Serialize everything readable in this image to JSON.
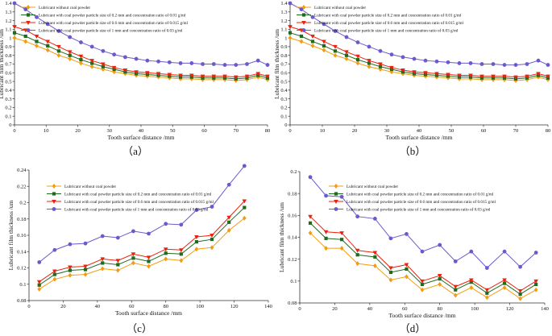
{
  "captions": [
    "（a）",
    "（b）",
    "（c）",
    "（d）"
  ],
  "series_colors": [
    "#f39c12",
    "#1e6b1e",
    "#e8230e",
    "#6a5acd"
  ],
  "series_markers": [
    "diamond",
    "square",
    "triangle-down",
    "circle"
  ],
  "chart_data": [
    {
      "type": "line",
      "xlabel": "Tooth surface distance /mm",
      "ylabel": "Lubricant film thickness /um",
      "xlim": [
        0,
        80
      ],
      "ylim": [
        0,
        1.4
      ],
      "xticks": [
        "0",
        "10",
        "20",
        "30",
        "40",
        "50",
        "60",
        "70",
        "80"
      ],
      "yticks": [
        "0",
        "0.1",
        "0.2",
        "0.3",
        "0.4",
        "0.5",
        "0.6",
        "0.7",
        "0.8",
        "0.9",
        "1",
        "1.1",
        "1.2",
        "1.3",
        "1.4"
      ],
      "legend_position": "top-left",
      "x": [
        0,
        3.5,
        7,
        10.5,
        14,
        17.5,
        21,
        24.5,
        28,
        31.5,
        35,
        38.5,
        42,
        45.5,
        49,
        52.5,
        56,
        59.5,
        63,
        66.5,
        70,
        73.5,
        77,
        80
      ],
      "series": [
        {
          "name": "Lubricant without coal powder",
          "values": [
            1.0,
            0.96,
            0.91,
            0.86,
            0.8,
            0.76,
            0.71,
            0.67,
            0.64,
            0.61,
            0.59,
            0.57,
            0.56,
            0.55,
            0.54,
            0.53,
            0.53,
            0.52,
            0.52,
            0.52,
            0.51,
            0.52,
            0.55,
            0.52
          ]
        },
        {
          "name": "Lubricant with coal powder particle size of 0.2 mm and concentration ratio of 0.01 g/ml",
          "values": [
            1.06,
            1.02,
            0.96,
            0.91,
            0.85,
            0.8,
            0.75,
            0.71,
            0.67,
            0.64,
            0.61,
            0.59,
            0.58,
            0.57,
            0.56,
            0.55,
            0.55,
            0.54,
            0.54,
            0.54,
            0.53,
            0.54,
            0.57,
            0.54
          ]
        },
        {
          "name": "Lubricant with coal powder particle size of 0.6 mm and concentration ratio of 0.015 g/ml",
          "values": [
            1.13,
            1.09,
            1.02,
            0.96,
            0.9,
            0.84,
            0.79,
            0.74,
            0.7,
            0.66,
            0.63,
            0.61,
            0.6,
            0.59,
            0.58,
            0.57,
            0.57,
            0.56,
            0.56,
            0.56,
            0.55,
            0.56,
            0.59,
            0.56
          ]
        },
        {
          "name": "Lubricant with coal powder particle size of 1 mm and concentration ratio of 0.03 g/ml",
          "values": [
            1.4,
            1.33,
            1.24,
            1.16,
            1.08,
            1.01,
            0.95,
            0.9,
            0.85,
            0.81,
            0.78,
            0.76,
            0.74,
            0.73,
            0.72,
            0.71,
            0.71,
            0.7,
            0.7,
            0.69,
            0.69,
            0.7,
            0.74,
            0.69
          ]
        }
      ]
    },
    {
      "type": "line",
      "xlabel": "Tooth surface distance /mm",
      "ylabel": "Lubricant film thickness /um",
      "xlim": [
        0,
        80
      ],
      "ylim": [
        0,
        1.4
      ],
      "xticks": [
        "0",
        "10",
        "20",
        "30",
        "40",
        "50",
        "60",
        "70",
        "80"
      ],
      "yticks": [
        "0",
        "0.1",
        "0.2",
        "0.3",
        "0.4",
        "0.5",
        "0.6",
        "0.7",
        "0.8",
        "0.9",
        "1",
        "1.1",
        "1.2",
        "1.3",
        "1.4"
      ],
      "legend_position": "top-left",
      "x": [
        0,
        3.5,
        7,
        10.5,
        14,
        17.5,
        21,
        24.5,
        28,
        31.5,
        35,
        38.5,
        42,
        45.5,
        49,
        52.5,
        56,
        59.5,
        63,
        66.5,
        70,
        73.5,
        77,
        80
      ],
      "series": [
        {
          "name": "Lubricant without coal powder",
          "values": [
            1.0,
            0.96,
            0.91,
            0.86,
            0.8,
            0.76,
            0.71,
            0.67,
            0.64,
            0.61,
            0.59,
            0.57,
            0.56,
            0.55,
            0.54,
            0.53,
            0.53,
            0.52,
            0.52,
            0.52,
            0.51,
            0.52,
            0.55,
            0.52
          ]
        },
        {
          "name": "Lubricant with coal powder particle size of 0.2 mm and concentration ratio of 0.01 g/ml",
          "values": [
            1.06,
            1.02,
            0.96,
            0.91,
            0.85,
            0.8,
            0.75,
            0.71,
            0.67,
            0.64,
            0.61,
            0.59,
            0.58,
            0.57,
            0.56,
            0.55,
            0.55,
            0.54,
            0.54,
            0.54,
            0.53,
            0.54,
            0.57,
            0.54
          ]
        },
        {
          "name": "Lubricant with coal powder particle size of 0.6 mm and concentration ratio of 0.015 g/ml",
          "values": [
            1.13,
            1.09,
            1.02,
            0.96,
            0.9,
            0.84,
            0.79,
            0.74,
            0.7,
            0.66,
            0.63,
            0.61,
            0.6,
            0.59,
            0.58,
            0.57,
            0.57,
            0.56,
            0.56,
            0.56,
            0.55,
            0.56,
            0.59,
            0.56
          ]
        },
        {
          "name": "Lubricant with coal powder particle size of 1 mm and concentration ratio of 0.03 g/ml",
          "values": [
            1.4,
            1.33,
            1.24,
            1.16,
            1.08,
            1.01,
            0.95,
            0.9,
            0.85,
            0.81,
            0.78,
            0.76,
            0.74,
            0.73,
            0.72,
            0.71,
            0.71,
            0.7,
            0.7,
            0.69,
            0.69,
            0.7,
            0.74,
            0.69
          ]
        }
      ]
    },
    {
      "type": "line",
      "xlabel": "Tooth surface distance /mm",
      "ylabel": "Lubricant film thickness /um",
      "xlim": [
        0,
        140
      ],
      "ylim": [
        0.08,
        0.24
      ],
      "xticks": [
        "0",
        "20",
        "40",
        "60",
        "80",
        "100",
        "120",
        "140"
      ],
      "yticks": [
        "0.08",
        "0.1",
        "0.12",
        "0.14",
        "0.16",
        "0.18",
        "0.2",
        "0.22",
        "0.24"
      ],
      "legend_position": "top-left",
      "x": [
        6,
        15,
        24,
        33,
        43,
        52,
        61,
        70,
        80,
        89,
        98,
        107,
        117,
        126
      ],
      "series": [
        {
          "name": "Lubricant without coal powder",
          "values": [
            0.094,
            0.106,
            0.111,
            0.112,
            0.119,
            0.117,
            0.126,
            0.122,
            0.131,
            0.129,
            0.143,
            0.145,
            0.166,
            0.181
          ]
        },
        {
          "name": "Lubricant with coal powder particle size of 0.2 mm and concentration ratio of 0.01 g/ml",
          "values": [
            0.099,
            0.112,
            0.117,
            0.118,
            0.126,
            0.124,
            0.132,
            0.128,
            0.138,
            0.137,
            0.152,
            0.155,
            0.176,
            0.194
          ]
        },
        {
          "name": "Lubricant with coal powder particle size of 0.6 mm and concentration ratio of 0.015 g/ml",
          "values": [
            0.103,
            0.116,
            0.121,
            0.122,
            0.131,
            0.129,
            0.137,
            0.133,
            0.143,
            0.142,
            0.158,
            0.16,
            0.182,
            0.202
          ]
        },
        {
          "name": "Lubricant with coal powder particle size of 1 mm and concentration ratio of 0.03 g/ml",
          "values": [
            0.127,
            0.142,
            0.149,
            0.15,
            0.159,
            0.157,
            0.165,
            0.162,
            0.174,
            0.173,
            0.191,
            0.195,
            0.222,
            0.245
          ]
        }
      ]
    },
    {
      "type": "line",
      "xlabel": "Tooth surface distance /mm",
      "ylabel": "Lubricant film thickness /um",
      "xlim": [
        0,
        140
      ],
      "ylim": [
        0.08,
        0.2
      ],
      "xticks": [
        "0",
        "20",
        "40",
        "60",
        "80",
        "100",
        "120",
        "140"
      ],
      "yticks": [
        "0.08",
        "0.1",
        "0.12",
        "0.14",
        "0.16",
        "0.18",
        "0.2"
      ],
      "legend_position": "top-left",
      "x": [
        6,
        15,
        24,
        33,
        43,
        52,
        61,
        70,
        80,
        89,
        98,
        107,
        117,
        126,
        135
      ],
      "series": [
        {
          "name": "Lubricant without coal powder",
          "values": [
            0.144,
            0.13,
            0.13,
            0.116,
            0.114,
            0.101,
            0.104,
            0.092,
            0.097,
            0.087,
            0.094,
            0.085,
            0.094,
            0.084,
            0.092
          ]
        },
        {
          "name": "Lubricant with coal powder particle size of 0.2 mm and concentration ratio of 0.01 g/ml",
          "values": [
            0.153,
            0.139,
            0.138,
            0.124,
            0.122,
            0.108,
            0.111,
            0.097,
            0.102,
            0.092,
            0.099,
            0.089,
            0.098,
            0.088,
            0.097
          ]
        },
        {
          "name": "Lubricant with coal powder particle size of 0.6 mm and concentration ratio of 0.015 g/ml",
          "values": [
            0.159,
            0.145,
            0.144,
            0.128,
            0.126,
            0.112,
            0.115,
            0.1,
            0.105,
            0.095,
            0.101,
            0.092,
            0.101,
            0.091,
            0.1
          ]
        },
        {
          "name": "Lubricant with coal powder particle size of 1 mm and concentration ratio of 0.03 g/ml",
          "values": [
            0.195,
            0.178,
            0.177,
            0.159,
            0.157,
            0.139,
            0.143,
            0.127,
            0.133,
            0.118,
            0.127,
            0.112,
            0.127,
            0.113,
            0.126
          ]
        }
      ]
    }
  ]
}
